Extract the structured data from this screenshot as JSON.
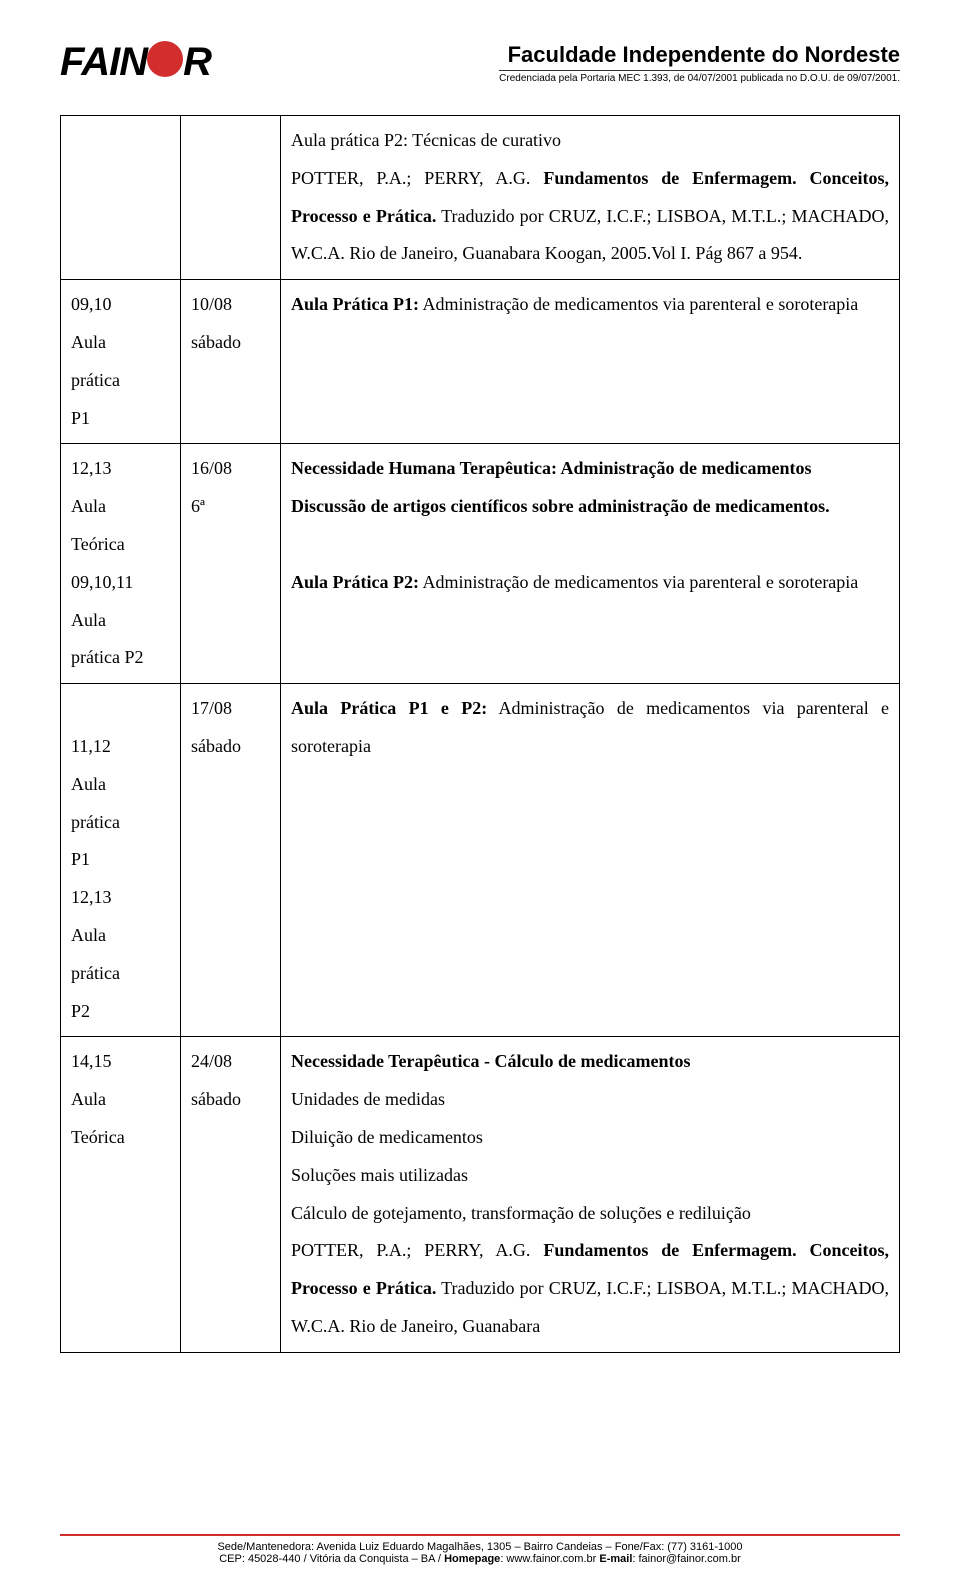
{
  "header": {
    "logo_pre": "FAIN",
    "logo_post": "R",
    "title": "Faculdade Independente do Nordeste",
    "subtitle": "Credenciada pela Portaria MEC 1.393, de 04/07/2001 publicada no D.O.U. de 09/07/2001."
  },
  "rows": [
    {
      "c1": "",
      "c2": "",
      "c3_parts": [
        {
          "t": "Aula prática P2",
          "b": false
        },
        {
          "t": ": Técnicas de curativo",
          "b": false
        }
      ],
      "c3_lines": [
        "POTTER, P.A.; PERRY, A.G. <b>Fundamentos de Enfermagem. Conceitos, Processo e Prática.</b> Traduzido por CRUZ, I.C.F.; LISBOA, M.T.L.; MACHADO, W.C.A. Rio de Janeiro, Guanabara Koogan, 2005.Vol I. Pág 867 a 954."
      ]
    },
    {
      "c1": "09,10\nAula\nprática\nP1",
      "c2": "10/08\nsábado",
      "c3": "<b>Aula Prática P1:</b> Administração de medicamentos via parenteral e soroterapia"
    },
    {
      "c1": "12,13\nAula\nTeórica\n09,10,11\nAula\nprática P2",
      "c2": "16/08\n6ª",
      "c3": "<b>Necessidade Humana Terapêutica: Administração de medicamentos</b><br><b>Discussão de artigos científicos sobre administração de medicamentos.</b><br><br><b>Aula Prática P2:</b> Administração de medicamentos via parenteral e soroterapia"
    },
    {
      "c1": "\n11,12\nAula\nprática\nP1\n12,13\nAula\nprática\nP2",
      "c2": "17/08\nsábado",
      "c3": "<b>Aula Prática P1 e P2:</b> Administração de medicamentos via parenteral e soroterapia"
    },
    {
      "c1": "14,15\nAula\nTeórica",
      "c2": "24/08\nsábado",
      "c3": "<b>Necessidade Terapêutica - Cálculo de medicamentos</b><br>Unidades de medidas<br>Diluição de medicamentos<br>Soluções mais utilizadas<br>Cálculo de gotejamento, transformação de soluções e rediluição<br>POTTER, P.A.; PERRY, A.G. <b>Fundamentos de Enfermagem. Conceitos, Processo e Prática.</b> Traduzido por CRUZ, I.C.F.; LISBOA, M.T.L.; MACHADO, W.C.A. Rio de Janeiro, Guanabara"
    }
  ],
  "footer": {
    "line1": "Sede/Mantenedora: Avenida Luiz Eduardo Magalhães, 1305 – Bairro Candeias – Fone/Fax: (77) 3161-1000",
    "line2_pre": "CEP: 45028-440 / Vitória da Conquista – BA / ",
    "line2_home_label": "Homepage",
    "line2_home_val": ": www.fainor.com.br ",
    "line2_email_label": "E-mail",
    "line2_email_val": ": fainor@fainor.com.br"
  },
  "colors": {
    "accent_red": "#d22e2e",
    "text": "#000000",
    "bg": "#ffffff"
  }
}
